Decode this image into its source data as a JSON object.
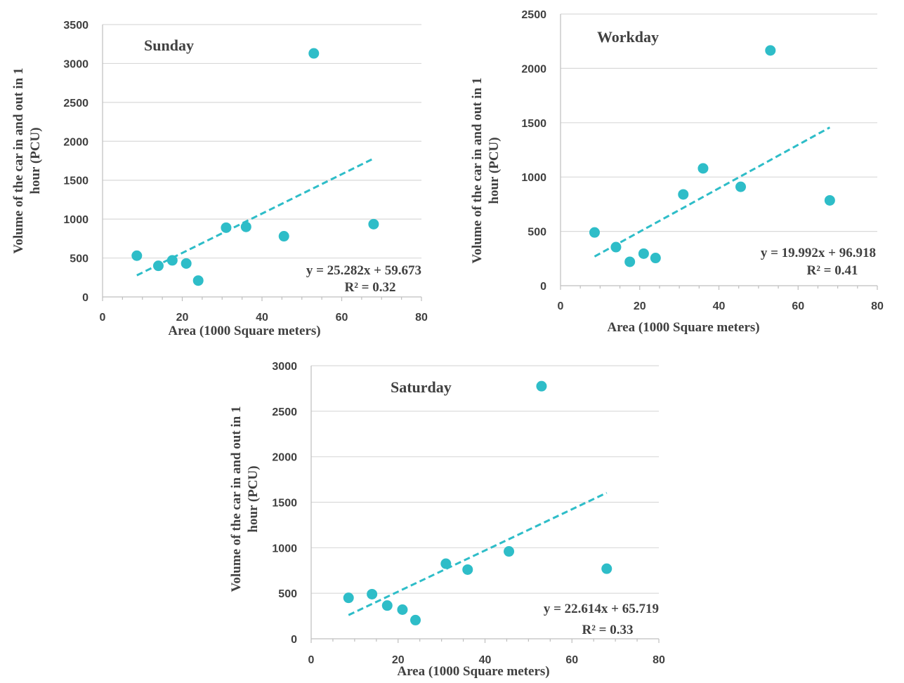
{
  "chart_data": [
    {
      "type": "scatter",
      "title": "Sunday",
      "xlabel": "Area (1000 Square meters)",
      "ylabel_lines": [
        "Volume of the car in and out in 1",
        "hour (PCU)"
      ],
      "xlim": [
        0,
        80
      ],
      "ylim": [
        0,
        3500
      ],
      "xticks": [
        0,
        20,
        40,
        60,
        80
      ],
      "yticks": [
        0,
        500,
        1000,
        1500,
        2000,
        2500,
        3000,
        3500
      ],
      "grid": true,
      "legend": "none",
      "points": {
        "x": [
          8.6,
          14,
          17.5,
          21,
          24,
          31,
          36,
          45.5,
          53,
          68
        ],
        "y": [
          530,
          400,
          470,
          430,
          210,
          890,
          900,
          780,
          3130,
          935
        ]
      },
      "trendline": {
        "slope": 25.282,
        "intercept": 59.673,
        "x_range": [
          8.6,
          68
        ]
      },
      "equation": "y = 25.282x + 59.673",
      "r2": "R² = 0.32",
      "color": "#2ebdc8"
    },
    {
      "type": "scatter",
      "title": "Workday",
      "xlabel": "Area (1000 Square meters)",
      "ylabel_lines": [
        "Volume of the car in and out in 1",
        "hour (PCU)"
      ],
      "xlim": [
        0,
        80
      ],
      "ylim": [
        0,
        2500
      ],
      "xticks": [
        0,
        20,
        40,
        60,
        80
      ],
      "yticks": [
        0,
        500,
        1000,
        1500,
        2000,
        2500
      ],
      "grid": true,
      "legend": "none",
      "points": {
        "x": [
          8.6,
          14,
          17.5,
          21,
          24,
          31,
          36,
          45.5,
          53,
          68
        ],
        "y": [
          490,
          355,
          220,
          295,
          255,
          840,
          1080,
          910,
          2165,
          785
        ]
      },
      "trendline": {
        "slope": 19.992,
        "intercept": 96.918,
        "x_range": [
          8.6,
          68
        ]
      },
      "equation": "y = 19.992x + 96.918",
      "r2": "R² = 0.41",
      "color": "#2ebdc8"
    },
    {
      "type": "scatter",
      "title": "Saturday",
      "xlabel": "Area (1000 Square meters)",
      "ylabel_lines": [
        "Volume of the car in and out in 1",
        "hour (PCU)"
      ],
      "xlim": [
        0,
        80
      ],
      "ylim": [
        0,
        3000
      ],
      "xticks": [
        0,
        20,
        40,
        60,
        80
      ],
      "yticks": [
        0,
        500,
        1000,
        1500,
        2000,
        2500,
        3000
      ],
      "grid": true,
      "legend": "none",
      "points": {
        "x": [
          8.6,
          14,
          17.5,
          21,
          24,
          31,
          36,
          45.5,
          53,
          68
        ],
        "y": [
          450,
          490,
          365,
          320,
          205,
          825,
          760,
          960,
          2775,
          770
        ]
      },
      "trendline": {
        "slope": 22.614,
        "intercept": 65.719,
        "x_range": [
          8.6,
          68
        ]
      },
      "equation": "y = 22.614x + 65.719",
      "r2": "R² = 0.33",
      "color": "#2ebdc8"
    }
  ]
}
